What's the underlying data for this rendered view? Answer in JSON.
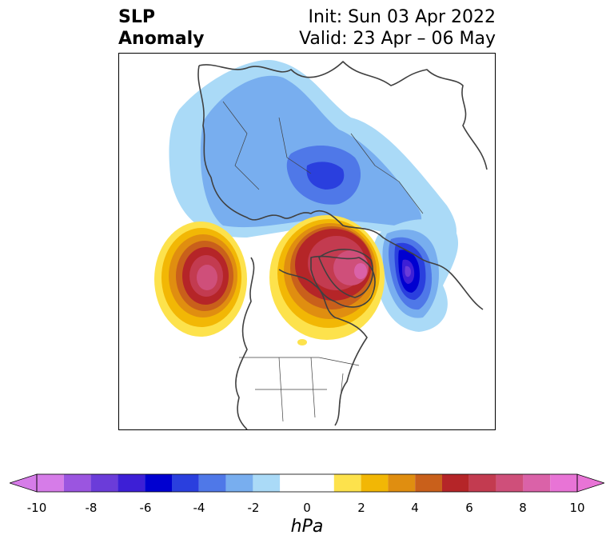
{
  "title": {
    "left_line1": "SLP",
    "left_line2": "Anomaly",
    "right_line1": "Init: Sun 03 Apr 2022",
    "right_line2": "Valid: 23 Apr – 06 May"
  },
  "colorbar": {
    "unit": "hPa",
    "tick_labels": [
      "-10",
      "-8",
      "-6",
      "-4",
      "-2",
      "0",
      "2",
      "4",
      "6",
      "8",
      "10"
    ],
    "bins": [
      {
        "from": -10,
        "to": -9,
        "color": "#d67ce8"
      },
      {
        "from": -9,
        "to": -8,
        "color": "#9b55e0"
      },
      {
        "from": -8,
        "to": -7,
        "color": "#6b3cd9"
      },
      {
        "from": -7,
        "to": -6,
        "color": "#3d1fd6"
      },
      {
        "from": -6,
        "to": -5,
        "color": "#0000d0"
      },
      {
        "from": -5,
        "to": -4,
        "color": "#2a3fde"
      },
      {
        "from": -4,
        "to": -3,
        "color": "#4f78e8"
      },
      {
        "from": -3,
        "to": -2,
        "color": "#78aeef"
      },
      {
        "from": -2,
        "to": -1,
        "color": "#aadaf7"
      },
      {
        "from": -1,
        "to": 1,
        "color": "#ffffff"
      },
      {
        "from": 1,
        "to": 2,
        "color": "#fde24c"
      },
      {
        "from": 2,
        "to": 3,
        "color": "#f2b705"
      },
      {
        "from": 3,
        "to": 4,
        "color": "#e08e10"
      },
      {
        "from": 4,
        "to": 5,
        "color": "#c9601b"
      },
      {
        "from": 5,
        "to": 6,
        "color": "#b52528"
      },
      {
        "from": 6,
        "to": 7,
        "color": "#c33b50"
      },
      {
        "from": 7,
        "to": 8,
        "color": "#cf4f7a"
      },
      {
        "from": 8,
        "to": 9,
        "color": "#da62a8"
      },
      {
        "from": 9,
        "to": 10,
        "color": "#e874d6"
      }
    ],
    "extend": "both"
  },
  "map": {
    "projection": "polar-stereographic-north",
    "features": [
      {
        "name": "low-europe-russia",
        "peak_hpa": -5
      },
      {
        "name": "high-gulf-of-alaska",
        "peak_hpa": 8
      },
      {
        "name": "high-greenland",
        "peak_hpa": 8
      },
      {
        "name": "low-north-atlantic",
        "peak_hpa": -7
      }
    ]
  }
}
